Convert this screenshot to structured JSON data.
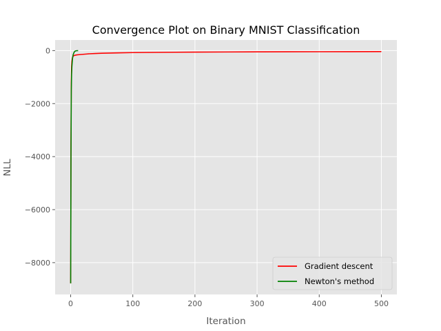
{
  "chart_data": {
    "type": "line",
    "title": "Convergence Plot on Binary MNIST Classification",
    "xlabel": "Iteration",
    "ylabel": "NLL",
    "xlim": [
      -25,
      525
    ],
    "ylim": [
      -9200,
      400
    ],
    "x_ticks": [
      0,
      100,
      200,
      300,
      400,
      500
    ],
    "y_ticks": [
      0,
      -2000,
      -4000,
      -6000,
      -8000
    ],
    "x_tick_labels": [
      "0",
      "100",
      "200",
      "300",
      "400",
      "500"
    ],
    "y_tick_labels": [
      "0",
      "−2000",
      "−4000",
      "−6000",
      "−8000"
    ],
    "grid": true,
    "legend_position": "lower-right",
    "series": [
      {
        "name": "Gradient descent",
        "color": "#ff0000",
        "x": [
          0,
          0.5,
          1,
          1.5,
          2,
          3,
          4,
          6,
          8,
          10,
          15,
          20,
          30,
          40,
          50,
          75,
          100,
          150,
          200,
          250,
          300,
          350,
          400,
          450,
          500
        ],
        "y": [
          -8780,
          -3500,
          -1200,
          -600,
          -400,
          -260,
          -210,
          -180,
          -170,
          -160,
          -150,
          -140,
          -120,
          -110,
          -100,
          -85,
          -75,
          -65,
          -57,
          -52,
          -48,
          -45,
          -42,
          -40,
          -38
        ]
      },
      {
        "name": "Newton's method",
        "color": "#008000",
        "x": [
          0,
          0.5,
          1,
          1.5,
          2,
          3,
          4,
          5,
          6,
          7,
          8,
          9,
          10,
          12
        ],
        "y": [
          -8780,
          -4000,
          -1500,
          -900,
          -600,
          -300,
          -160,
          -90,
          -45,
          -22,
          -12,
          -6,
          -3,
          -2
        ]
      }
    ]
  }
}
